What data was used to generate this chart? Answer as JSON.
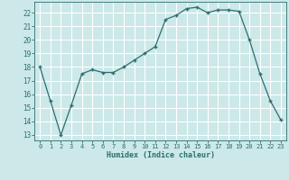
{
  "x": [
    0,
    1,
    2,
    3,
    4,
    5,
    6,
    7,
    8,
    9,
    10,
    11,
    12,
    13,
    14,
    15,
    16,
    17,
    18,
    19,
    20,
    21,
    22,
    23
  ],
  "y": [
    18,
    15.5,
    13,
    15.2,
    17.5,
    17.8,
    17.6,
    17.6,
    18.0,
    18.5,
    19.0,
    19.5,
    21.5,
    21.8,
    22.3,
    22.4,
    22.0,
    22.2,
    22.2,
    22.1,
    20.0,
    17.5,
    15.5,
    14.1
  ],
  "line_color": "#2d6e6e",
  "marker": "+",
  "bg_color": "#cce8e8",
  "grid_color": "#ffffff",
  "tick_color": "#2d6e6e",
  "label_color": "#2d6e6e",
  "xlabel": "Humidex (Indice chaleur)",
  "yticks": [
    13,
    14,
    15,
    16,
    17,
    18,
    19,
    20,
    21,
    22
  ],
  "xticks": [
    0,
    1,
    2,
    3,
    4,
    5,
    6,
    7,
    8,
    9,
    10,
    11,
    12,
    13,
    14,
    15,
    16,
    17,
    18,
    19,
    20,
    21,
    22,
    23
  ]
}
